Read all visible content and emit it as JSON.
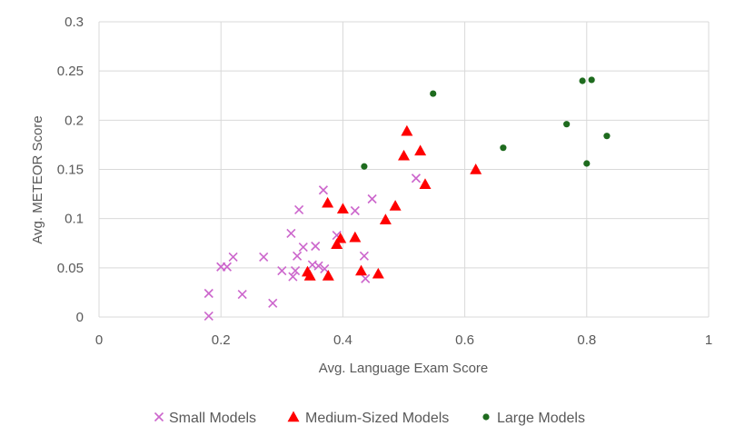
{
  "chart_data": {
    "type": "scatter",
    "title": "",
    "xlabel": "Avg. Language Exam Score",
    "ylabel": "Avg. METEOR Score",
    "xlim": [
      0,
      1
    ],
    "ylim": [
      0,
      0.3
    ],
    "grid": true,
    "legend_position": "bottom",
    "x_ticks": [
      0,
      0.2,
      0.4,
      0.6,
      0.8,
      1
    ],
    "x_tick_labels": [
      "0",
      "0.2",
      "0.4",
      "0.6",
      "0.8",
      "1"
    ],
    "y_ticks": [
      0,
      0.05,
      0.1,
      0.15,
      0.2,
      0.25,
      0.3
    ],
    "y_tick_labels": [
      "0",
      "0.05",
      "0.1",
      "0.15",
      "0.2",
      "0.25",
      "0.3"
    ],
    "series": [
      {
        "name": "Small Models",
        "marker": "x",
        "color": "#cc66cc",
        "points": [
          [
            0.18,
            0.024
          ],
          [
            0.18,
            0.001
          ],
          [
            0.2,
            0.051
          ],
          [
            0.21,
            0.051
          ],
          [
            0.22,
            0.061
          ],
          [
            0.235,
            0.023
          ],
          [
            0.27,
            0.061
          ],
          [
            0.285,
            0.014
          ],
          [
            0.3,
            0.047
          ],
          [
            0.315,
            0.085
          ],
          [
            0.318,
            0.041
          ],
          [
            0.322,
            0.047
          ],
          [
            0.325,
            0.062
          ],
          [
            0.328,
            0.109
          ],
          [
            0.335,
            0.071
          ],
          [
            0.35,
            0.053
          ],
          [
            0.355,
            0.072
          ],
          [
            0.36,
            0.052
          ],
          [
            0.368,
            0.129
          ],
          [
            0.37,
            0.049
          ],
          [
            0.39,
            0.083
          ],
          [
            0.42,
            0.108
          ],
          [
            0.435,
            0.062
          ],
          [
            0.437,
            0.039
          ],
          [
            0.448,
            0.12
          ],
          [
            0.52,
            0.141
          ]
        ]
      },
      {
        "name": "Medium-Sized Models",
        "marker": "triangle",
        "color": "#ff0000",
        "points": [
          [
            0.342,
            0.046
          ],
          [
            0.346,
            0.042
          ],
          [
            0.375,
            0.116
          ],
          [
            0.376,
            0.042
          ],
          [
            0.39,
            0.074
          ],
          [
            0.396,
            0.08
          ],
          [
            0.4,
            0.11
          ],
          [
            0.42,
            0.081
          ],
          [
            0.43,
            0.047
          ],
          [
            0.458,
            0.044
          ],
          [
            0.47,
            0.099
          ],
          [
            0.486,
            0.113
          ],
          [
            0.5,
            0.164
          ],
          [
            0.505,
            0.189
          ],
          [
            0.527,
            0.169
          ],
          [
            0.535,
            0.135
          ],
          [
            0.618,
            0.15
          ]
        ]
      },
      {
        "name": "Large Models",
        "marker": "circle",
        "color": "#1e6b1e",
        "points": [
          [
            0.435,
            0.153
          ],
          [
            0.548,
            0.227
          ],
          [
            0.663,
            0.172
          ],
          [
            0.767,
            0.196
          ],
          [
            0.793,
            0.24
          ],
          [
            0.8,
            0.156
          ],
          [
            0.808,
            0.241
          ],
          [
            0.833,
            0.184
          ]
        ]
      }
    ]
  }
}
